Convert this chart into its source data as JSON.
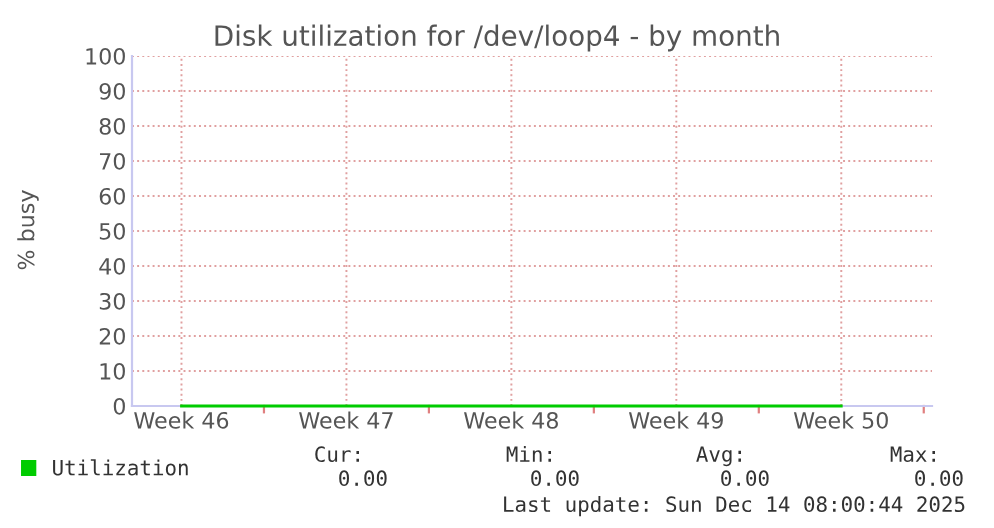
{
  "chart_data": {
    "type": "line",
    "title": "Disk utilization for /dev/loop4 - by month",
    "ylabel": "% busy",
    "categories": [
      "Week 46",
      "Week 47",
      "Week 48",
      "Week 49",
      "Week 50"
    ],
    "series": [
      {
        "name": "Utilization",
        "color": "#00cc00",
        "values": [
          0,
          0,
          0,
          0,
          0
        ]
      }
    ],
    "ylim": [
      0,
      100
    ],
    "yticks": [
      0,
      10,
      20,
      30,
      40,
      50,
      60,
      70,
      80,
      90,
      100
    ],
    "grid": true,
    "legend": "bottom left",
    "marker": "none",
    "line_style": "solid",
    "annotations": [
      "Cur:",
      "Min:",
      "Avg:",
      "Max:",
      "0.00",
      "0.00",
      "0.00",
      "0.00",
      "Last update: Sun Dec 14 08:00:44 2025"
    ]
  }
}
